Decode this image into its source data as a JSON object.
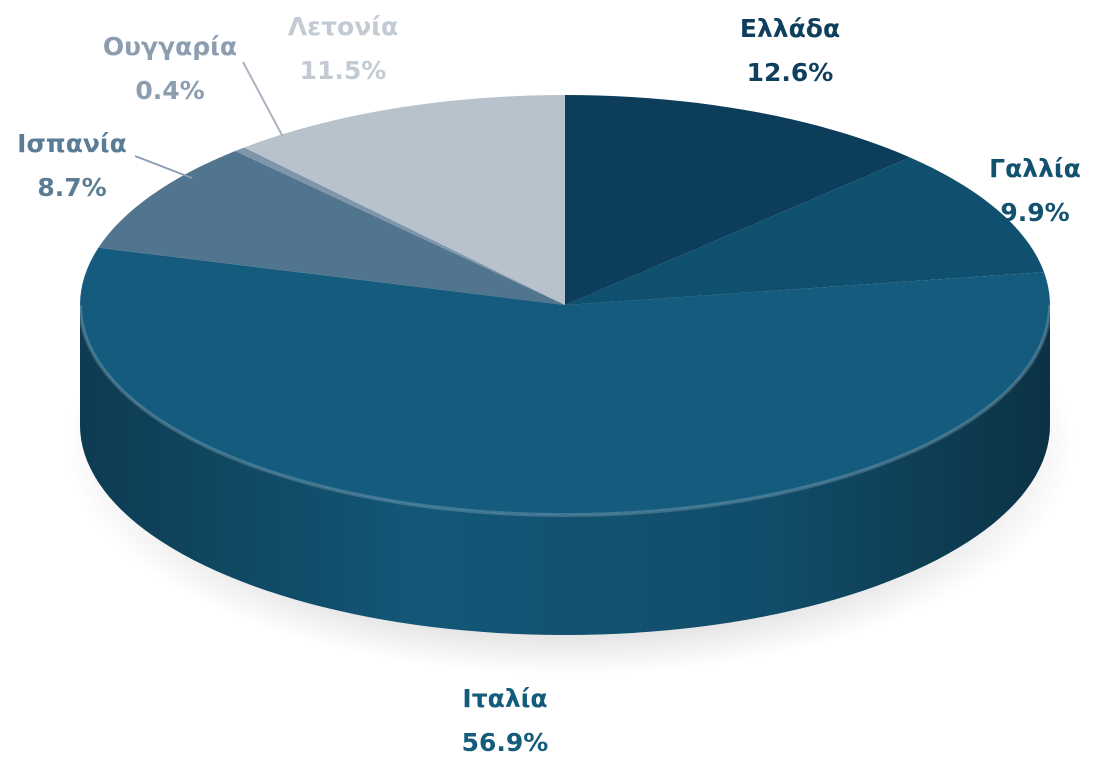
{
  "chart_data": {
    "type": "pie3d",
    "categories": [
      "Ελλάδα",
      "Γαλλία",
      "Ιταλία",
      "Ισπανία",
      "Ουγγαρία",
      "Λετονία"
    ],
    "values": [
      12.6,
      9.9,
      56.9,
      8.7,
      0.4,
      11.5
    ],
    "value_labels": [
      "12.6%",
      "9.9%",
      "56.9%",
      "8.7%",
      "0.4%",
      "11.5%"
    ],
    "colors": [
      "#0c3d5b",
      "#10506f",
      "#145b7d",
      "#51748f",
      "#7f95aa",
      "#b8c2cc"
    ],
    "label_colors": [
      "#0e3f5d",
      "#12526f",
      "#155c7c",
      "#5b7c95",
      "#8c9db0",
      "#c2cad3"
    ]
  }
}
